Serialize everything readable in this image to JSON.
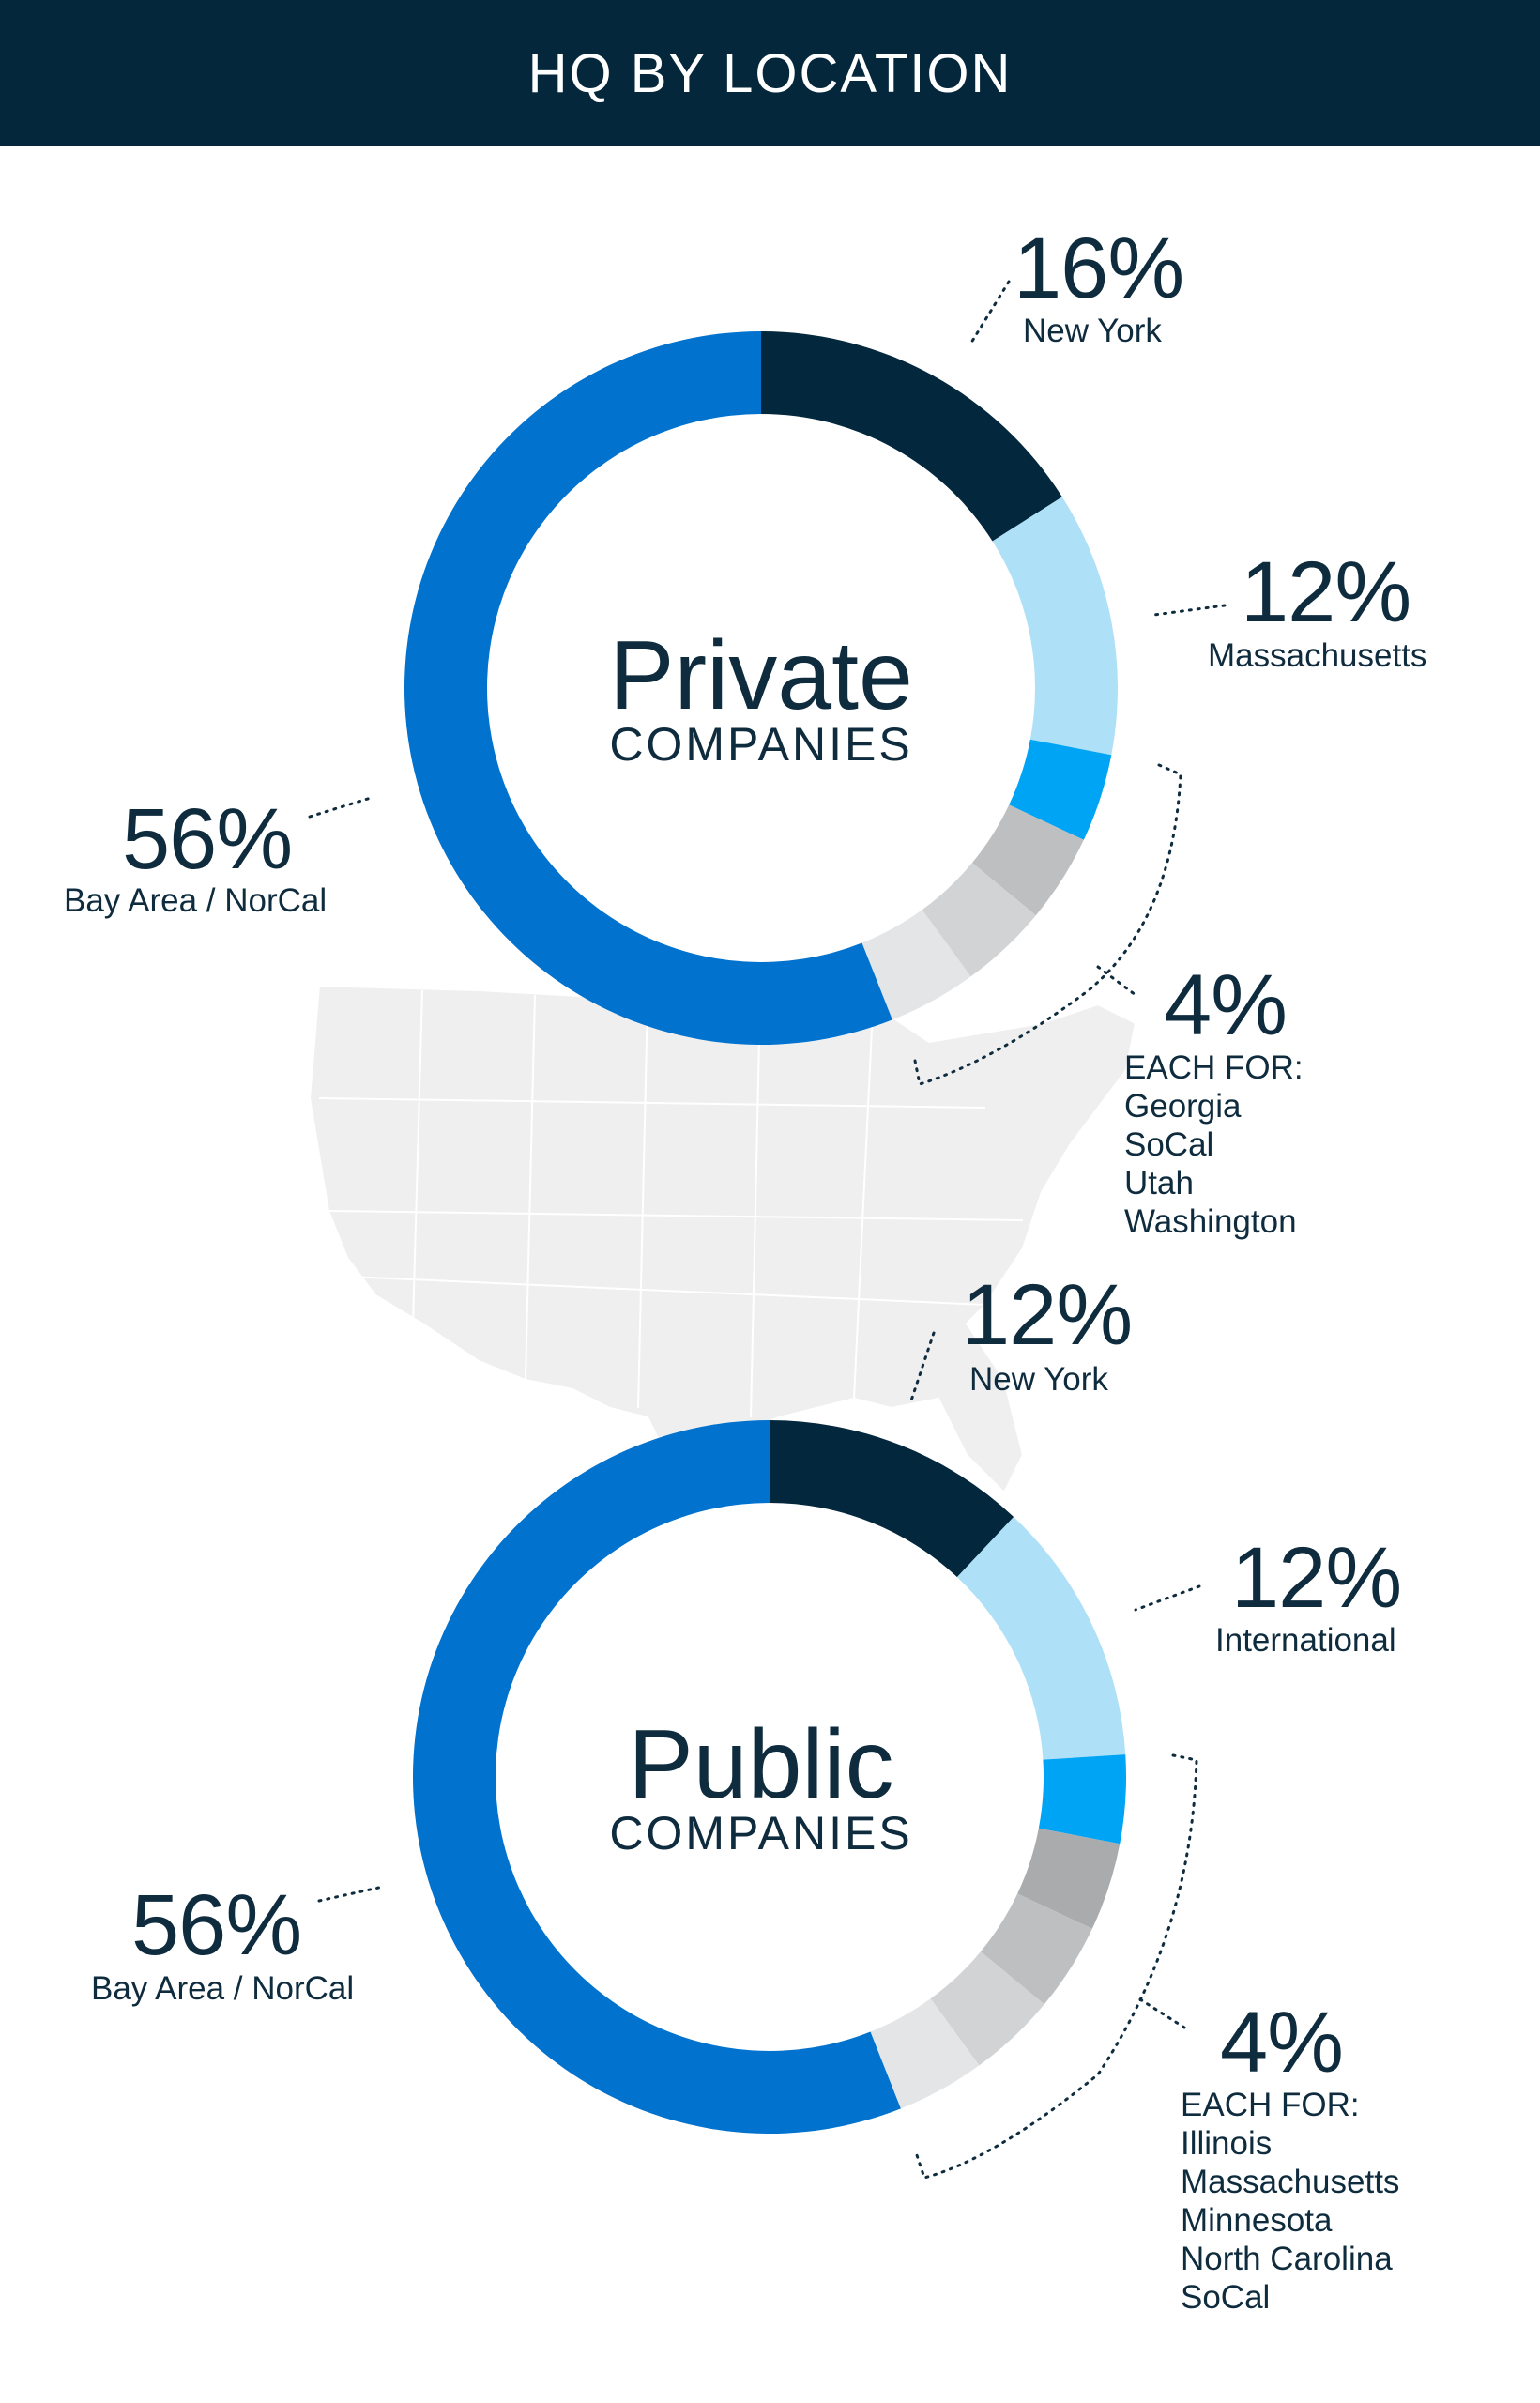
{
  "header": {
    "title": "HQ BY LOCATION"
  },
  "colors": {
    "header_bg": "#04273b",
    "navy": "#03283d",
    "light_blue": "#aee0f8",
    "bright_blue": "#00a4f4",
    "main_blue": "#0172ce",
    "gray_dark": "#a9abad",
    "gray_mid": "#bdbfc1",
    "gray_light": "#d2d3d5",
    "gray_lightest": "#e4e5e6",
    "map_fill": "#efefef"
  },
  "chart_data": [
    {
      "type": "donut",
      "title": "Private",
      "subtitle": "COMPANIES",
      "slices": [
        {
          "label": "New York",
          "value": 16,
          "color": "#03283d"
        },
        {
          "label": "Massachusetts",
          "value": 12,
          "color": "#aee0f8"
        },
        {
          "label": "Georgia",
          "value": 4,
          "color": "#00a4f4"
        },
        {
          "label": "SoCal",
          "value": 4,
          "color": "#bdbfc1"
        },
        {
          "label": "Utah",
          "value": 4,
          "color": "#d2d3d5"
        },
        {
          "label": "Washington",
          "value": 4,
          "color": "#e4e5e6"
        },
        {
          "label": "Bay Area / NorCal",
          "value": 56,
          "color": "#0172ce"
        }
      ],
      "callouts": {
        "top": {
          "pct": "16%",
          "label": "New York"
        },
        "right": {
          "pct": "12%",
          "label": "Massachusetts"
        },
        "left": {
          "pct": "56%",
          "label": "Bay Area / NorCal"
        },
        "group": {
          "pct": "4%",
          "heading": "EACH FOR:",
          "items": [
            "Georgia",
            "SoCal",
            "Utah",
            "Washington"
          ]
        }
      }
    },
    {
      "type": "donut",
      "title": "Public",
      "subtitle": "COMPANIES",
      "slices": [
        {
          "label": "New York",
          "value": 12,
          "color": "#03283d"
        },
        {
          "label": "International",
          "value": 12,
          "color": "#aee0f8"
        },
        {
          "label": "Illinois",
          "value": 4,
          "color": "#00a4f4"
        },
        {
          "label": "Massachusetts",
          "value": 4,
          "color": "#a9abad"
        },
        {
          "label": "Minnesota",
          "value": 4,
          "color": "#bdbfc1"
        },
        {
          "label": "North Carolina",
          "value": 4,
          "color": "#d2d3d5"
        },
        {
          "label": "SoCal",
          "value": 4,
          "color": "#e4e5e6"
        },
        {
          "label": "Bay Area / NorCal",
          "value": 56,
          "color": "#0172ce"
        }
      ],
      "callouts": {
        "top": {
          "pct": "12%",
          "label": "New York"
        },
        "right": {
          "pct": "12%",
          "label": "International"
        },
        "left": {
          "pct": "56%",
          "label": "Bay Area / NorCal"
        },
        "group": {
          "pct": "4%",
          "heading": "EACH FOR:",
          "items": [
            "Illinois",
            "Massachusetts",
            "Minnesota",
            "North Carolina",
            "SoCal"
          ]
        }
      }
    }
  ]
}
